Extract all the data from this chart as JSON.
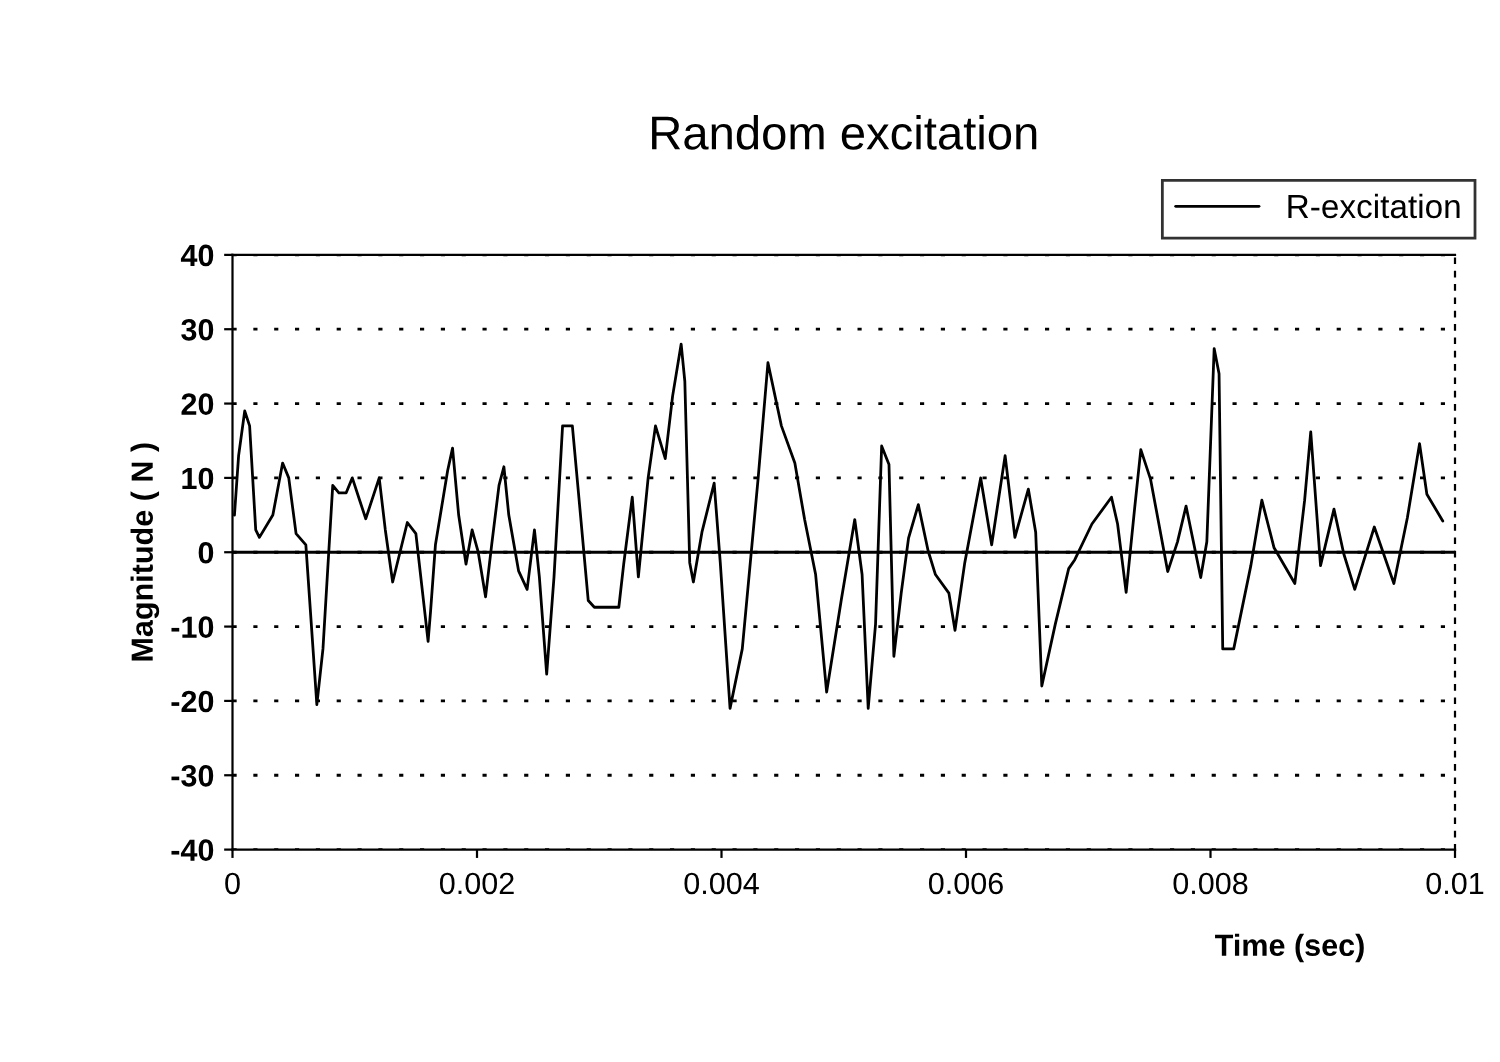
{
  "chart_data": {
    "type": "line",
    "title": "Random excitation",
    "xlabel": "Time (sec)",
    "ylabel": "Magnitude ( N )",
    "xlim": [
      0,
      0.01
    ],
    "ylim": [
      -40,
      40
    ],
    "xticks": [
      0,
      0.002,
      0.004,
      0.006,
      0.008,
      0.01
    ],
    "yticks": [
      -40,
      -30,
      -20,
      -10,
      0,
      10,
      20,
      30,
      40
    ],
    "grid": "y",
    "ref_lines": [
      {
        "axis": "y",
        "value": 0,
        "color": "#000000",
        "line_style": "solid"
      }
    ],
    "legend": "top right",
    "marker": "none",
    "line_style": "solid",
    "series": [
      {
        "name": "R-excitation",
        "color": "#000000",
        "x": [
          1.6e-05,
          5e-05,
          0.0001,
          0.00014,
          0.00019,
          0.00022,
          0.00033,
          0.00041,
          0.00046,
          0.00052,
          0.0006,
          0.00069,
          0.00074,
          0.00082,
          0.00087,
          0.00093,
          0.00098,
          0.00104,
          0.00109,
          0.0012,
          0.00125,
          0.00131,
          0.00143,
          0.0015,
          0.0016,
          0.00162,
          0.00166,
          0.00176,
          0.0018,
          0.00185,
          0.00191,
          0.00196,
          0.00201,
          0.00207,
          0.00212,
          0.00218,
          0.00222,
          0.00226,
          0.00234,
          0.00241,
          0.00247,
          0.00251,
          0.00257,
          0.00263,
          0.0027,
          0.00278,
          0.00283,
          0.00291,
          0.00296,
          0.00316,
          0.0032,
          0.00327,
          0.00332,
          0.0034,
          0.00346,
          0.00354,
          0.0036,
          0.00367,
          0.0037,
          0.00374,
          0.00377,
          0.00384,
          0.00394,
          0.00399,
          0.00407,
          0.00417,
          0.0043,
          0.00438,
          0.00449,
          0.0046,
          0.00468,
          0.00477,
          0.00486,
          0.00498,
          0.00509,
          0.00515,
          0.0052,
          0.00526,
          0.00531,
          0.00537,
          0.00541,
          0.00547,
          0.00553,
          0.00561,
          0.00569,
          0.00575,
          0.00586,
          0.00591,
          0.00599,
          0.00612,
          0.00621,
          0.00632,
          0.0064,
          0.00651,
          0.00657,
          0.00662,
          0.00673,
          0.00684,
          0.00689,
          0.00703,
          0.00719,
          0.00724,
          0.00731,
          0.00738,
          0.00743,
          0.00751,
          0.00765,
          0.00773,
          0.0078,
          0.00792,
          0.00797,
          0.00803,
          0.00807,
          0.0081,
          0.00819,
          0.00833,
          0.00842,
          0.00852,
          0.00869,
          0.00877,
          0.00882,
          0.0089,
          0.00901,
          0.00909,
          0.00918,
          0.00934,
          0.0095,
          0.00961,
          0.00971,
          0.00977,
          0.0099
        ],
        "values": [
          5,
          13,
          19,
          17,
          3,
          2,
          5,
          12,
          10,
          2.5,
          1,
          -20.5,
          -13,
          9,
          8,
          8,
          10,
          7,
          4.5,
          10,
          3,
          -4,
          4,
          2.5,
          -12,
          -8,
          1,
          11,
          14,
          5,
          -1.6,
          3,
          0,
          -6,
          1,
          9,
          11.5,
          5,
          -2.5,
          -5,
          3,
          -3.3,
          -16.4,
          -3.3,
          17,
          17,
          8,
          -6.5,
          -7.4,
          -7.4,
          -1.6,
          7.4,
          -3.3,
          10,
          17,
          12.6,
          21,
          28,
          23,
          -1.4,
          -4,
          2.7,
          9.3,
          -1.4,
          -21,
          -13,
          10,
          25.5,
          17,
          12,
          4.4,
          -3,
          -18.8,
          -6.4,
          4.4,
          -3,
          -21,
          -9.7,
          14.3,
          11.8,
          -14,
          -5.5,
          1.9,
          6.4,
          0.2,
          -3,
          -5.5,
          -10.5,
          -1.4,
          10,
          1,
          13,
          2,
          8.5,
          2.7,
          -18,
          -9.7,
          -2.2,
          -1,
          3.8,
          7.4,
          3.8,
          -5.4,
          6,
          13.8,
          9.8,
          -2.6,
          1.4,
          6.2,
          -3.4,
          1.4,
          27.4,
          24,
          -13,
          -13,
          -1.8,
          7,
          0.6,
          -4.2,
          7,
          16.2,
          -1.8,
          5.8,
          -0.2,
          -5,
          3.4,
          -4.2,
          4.6,
          14.6,
          7.8,
          4.2
        ]
      }
    ]
  }
}
